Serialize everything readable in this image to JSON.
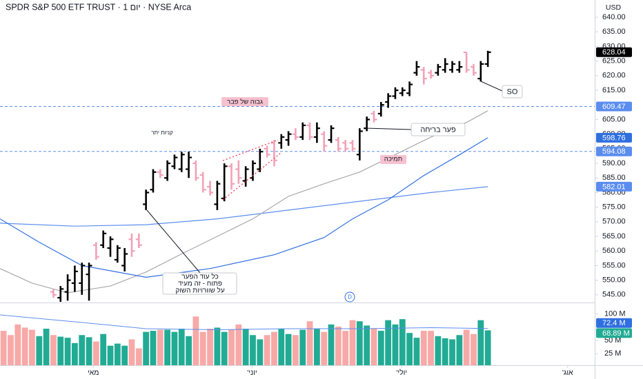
{
  "chart_data": {
    "type": "ohlc",
    "title": "SPDR S&P 500 ETF TRUST · 1 יום · NYSE Arca",
    "currency": "USD",
    "interval_badge": "D",
    "x": [
      0,
      1,
      2,
      3,
      4,
      5,
      6,
      7,
      8,
      9,
      10,
      11,
      12,
      13,
      14,
      15,
      16,
      17,
      18,
      19,
      20,
      21,
      22,
      23,
      24,
      25,
      26,
      27,
      28,
      29,
      30,
      31,
      32,
      33,
      34,
      35,
      36,
      37,
      38,
      39,
      40,
      41,
      42,
      43,
      44,
      45,
      46,
      47,
      48,
      49,
      50,
      51,
      52,
      53,
      54,
      55,
      56,
      57,
      58,
      59,
      60,
      61,
      62,
      63,
      64,
      65,
      66,
      67,
      68
    ],
    "xlim": [
      -0.5,
      83
    ],
    "xticks": [
      {
        "value": 12.6,
        "label": "מאי"
      },
      {
        "value": 34.9,
        "label": "יוני'"
      },
      {
        "value": 55.9,
        "label": "יולי'"
      },
      {
        "value": 79.2,
        "label": "אוג'"
      }
    ],
    "ylim": [
      542.6,
      645.9
    ],
    "yticks": [
      {
        "value": 545,
        "label": "545.00"
      },
      {
        "value": 550,
        "label": "550.00"
      },
      {
        "value": 555,
        "label": "555.00"
      },
      {
        "value": 560,
        "label": "560.00"
      },
      {
        "value": 565,
        "label": "565.00"
      },
      {
        "value": 570,
        "label": "570.00"
      },
      {
        "value": 575,
        "label": "575.00"
      },
      {
        "value": 580,
        "label": "580.00"
      },
      {
        "value": 585,
        "label": "585.00"
      },
      {
        "value": 590,
        "label": "590.00"
      },
      {
        "value": 595,
        "label": "595.00"
      },
      {
        "value": 600,
        "label": "600.00"
      },
      {
        "value": 605,
        "label": "605.00"
      },
      {
        "value": 610,
        "label": "610.00"
      },
      {
        "value": 615,
        "label": "615.00"
      },
      {
        "value": 620,
        "label": "620.00"
      },
      {
        "value": 625,
        "label": "625.00"
      },
      {
        "value": 630,
        "label": "630.00"
      },
      {
        "value": 635,
        "label": "635.00"
      },
      {
        "value": 640,
        "label": "640.00"
      }
    ],
    "candles": {
      "up_color": "#000000",
      "down_color": "#f2a1b8",
      "open": [
        null,
        null,
        null,
        null,
        null,
        null,
        null,
        546,
        544,
        546,
        549,
        549,
        552,
        562,
        562,
        561,
        557,
        555,
        564,
        564,
        576,
        581,
        587,
        585,
        589,
        588,
        588,
        590,
        586,
        582,
        576,
        578,
        589,
        588,
        584,
        585,
        588,
        595,
        597,
        597,
        598,
        600,
        599,
        603,
        599,
        600,
        598,
        598,
        597,
        597,
        593,
        602,
        607,
        607,
        611,
        613,
        614,
        614,
        621,
        622,
        621,
        621,
        622,
        622,
        622,
        628,
        623,
        619,
        624
      ],
      "high": [
        null,
        null,
        null,
        null,
        null,
        null,
        null,
        547,
        548,
        552,
        555,
        556,
        556,
        563,
        567,
        565,
        562,
        561,
        566,
        566,
        581,
        588,
        588,
        591,
        593,
        594,
        594,
        591,
        587,
        584,
        584,
        590,
        590,
        591,
        589,
        591,
        595,
        596,
        598,
        600,
        601,
        602,
        604,
        604,
        604,
        601,
        603,
        599,
        598,
        598,
        602,
        606,
        608,
        611,
        614,
        616,
        616,
        618,
        625,
        623,
        622,
        624,
        626,
        625,
        625,
        628,
        624,
        625,
        628.5
      ],
      "low": [
        null,
        null,
        null,
        null,
        null,
        null,
        null,
        544,
        542,
        543,
        546,
        545,
        543,
        557,
        561,
        558,
        556,
        553,
        558,
        561,
        574,
        580,
        585,
        584,
        588,
        587,
        585,
        584,
        580,
        579,
        574,
        577,
        581,
        583,
        582,
        584,
        587,
        592,
        589,
        595,
        596,
        598,
        598,
        598,
        597,
        594,
        597,
        594,
        594,
        594,
        591,
        601,
        604,
        606,
        609,
        612,
        613,
        613,
        620,
        617,
        619,
        620,
        621,
        621,
        621,
        621,
        620,
        618,
        623
      ],
      "close": [
        null,
        null,
        null,
        null,
        null,
        null,
        null,
        545,
        547,
        550,
        553,
        555,
        555,
        558,
        566,
        564,
        561,
        559,
        560,
        562,
        580,
        587,
        586,
        590,
        592,
        593,
        592,
        585,
        581,
        580,
        583,
        589,
        583,
        585,
        588,
        590,
        594,
        593,
        591,
        599,
        600,
        599,
        603,
        599,
        602,
        596,
        602,
        595,
        595,
        595,
        601,
        605,
        605,
        610,
        613,
        615,
        615,
        617,
        623,
        619,
        620,
        623,
        624,
        624,
        623,
        622,
        621,
        624,
        628.04
      ]
    },
    "moving_averages": [
      {
        "color": "#5b8def",
        "x": [
          -0.5,
          10,
          20,
          30,
          40,
          50,
          60,
          68
        ],
        "values": [
          569.5,
          568.5,
          569,
          571,
          574,
          577,
          580,
          582.01
        ]
      },
      {
        "color": "#a8a8a8",
        "x": [
          -0.5,
          4,
          9,
          15,
          20,
          25,
          30,
          35,
          40,
          45,
          50,
          55,
          60,
          65,
          68
        ],
        "values": [
          554,
          549,
          545.7,
          548,
          552.8,
          559,
          565,
          571,
          578.7,
          583,
          587,
          593,
          599,
          604,
          608
        ]
      },
      {
        "color": "#2f6fe0",
        "x": [
          -0.5,
          5,
          11,
          20,
          29,
          38,
          45,
          49,
          54,
          59,
          64,
          68
        ],
        "values": [
          571,
          563,
          555,
          551,
          554,
          558.7,
          564.6,
          571,
          577.5,
          585.8,
          592.9,
          598.76
        ]
      }
    ],
    "price_labels": [
      {
        "value": 628.04,
        "color": "#000000"
      },
      {
        "value": 609.47,
        "color": "#5b8def",
        "dashed_line": true
      },
      {
        "value": 598.76,
        "color": "#2f6fe0"
      },
      {
        "value": 594.08,
        "color": "#5b8def",
        "dashed_line": true
      },
      {
        "value": 582.01,
        "color": "#5b8def"
      }
    ],
    "volume": {
      "ylim": [
        0,
        120
      ],
      "yticks": [
        {
          "value": 25,
          "label": "25 M"
        },
        {
          "value": 50,
          "label": "50 M"
        },
        {
          "value": 100,
          "label": "100 M"
        }
      ],
      "values": [
        68,
        60,
        80,
        74,
        70,
        58,
        72,
        60,
        57,
        55,
        45,
        60,
        56,
        48,
        62,
        40,
        44,
        40,
        52,
        35,
        66,
        68,
        70,
        70,
        66,
        72,
        58,
        95,
        66,
        72,
        74,
        66,
        70,
        80,
        72,
        60,
        52,
        60,
        66,
        72,
        62,
        60,
        70,
        86,
        72,
        66,
        80,
        76,
        68,
        88,
        86,
        78,
        72,
        68,
        88,
        80,
        90,
        64,
        55,
        68,
        68,
        58,
        54,
        52,
        60,
        70,
        62,
        88,
        68.89
      ],
      "colors": [
        "#f7a9a7",
        "#f7a9a7",
        "#f7a9a7",
        "#f7a9a7",
        "#f7a9a7",
        "#22ab94",
        "#22ab94",
        "#f7a9a7",
        "#22ab94",
        "#22ab94",
        "#22ab94",
        "#22ab94",
        "#22ab94",
        "#f7a9a7",
        "#22ab94",
        "#22ab94",
        "#22ab94",
        "#22ab94",
        "#f7a9a7",
        "#f7a9a7",
        "#22ab94",
        "#22ab94",
        "#f7a9a7",
        "#22ab94",
        "#22ab94",
        "#22ab94",
        "#22ab94",
        "#f7a9a7",
        "#f7a9a7",
        "#f7a9a7",
        "#22ab94",
        "#22ab94",
        "#f7a9a7",
        "#f7a9a7",
        "#22ab94",
        "#22ab94",
        "#22ab94",
        "#f7a9a7",
        "#f7a9a7",
        "#22ab94",
        "#22ab94",
        "#f7a9a7",
        "#22ab94",
        "#f7a9a7",
        "#22ab94",
        "#f7a9a7",
        "#22ab94",
        "#f7a9a7",
        "#f7a9a7",
        "#f7a9a7",
        "#22ab94",
        "#22ab94",
        "#f7a9a7",
        "#22ab94",
        "#22ab94",
        "#22ab94",
        "#22ab94",
        "#22ab94",
        "#22ab94",
        "#f7a9a7",
        "#f7a9a7",
        "#22ab94",
        "#22ab94",
        "#22ab94",
        "#22ab94",
        "#f7a9a7",
        "#f7a9a7",
        "#22ab94",
        "#22ab94"
      ],
      "average": {
        "color": "#5b8def",
        "x": [
          -0.5,
          10,
          20,
          30,
          40,
          50,
          60,
          68
        ],
        "values": [
          98,
          85,
          72,
          70,
          72,
          72,
          74,
          72.4
        ]
      },
      "labels": [
        {
          "value": 72.4,
          "label": "72.4 M",
          "color": "#2f6fe0"
        },
        {
          "value": 68.89,
          "label": "68.89 M",
          "color": "#22ab94"
        }
      ]
    },
    "annotations": {
      "feb_high": "גבוה של פבר",
      "support": "תמיכה",
      "overbought": "קניות יתר",
      "breakaway_gap": "פער בריחה",
      "so": "SO",
      "gap_note": [
        "כל עוד הפער",
        "פתוח - זה מעיד",
        "על שוורויות השוק"
      ]
    }
  }
}
